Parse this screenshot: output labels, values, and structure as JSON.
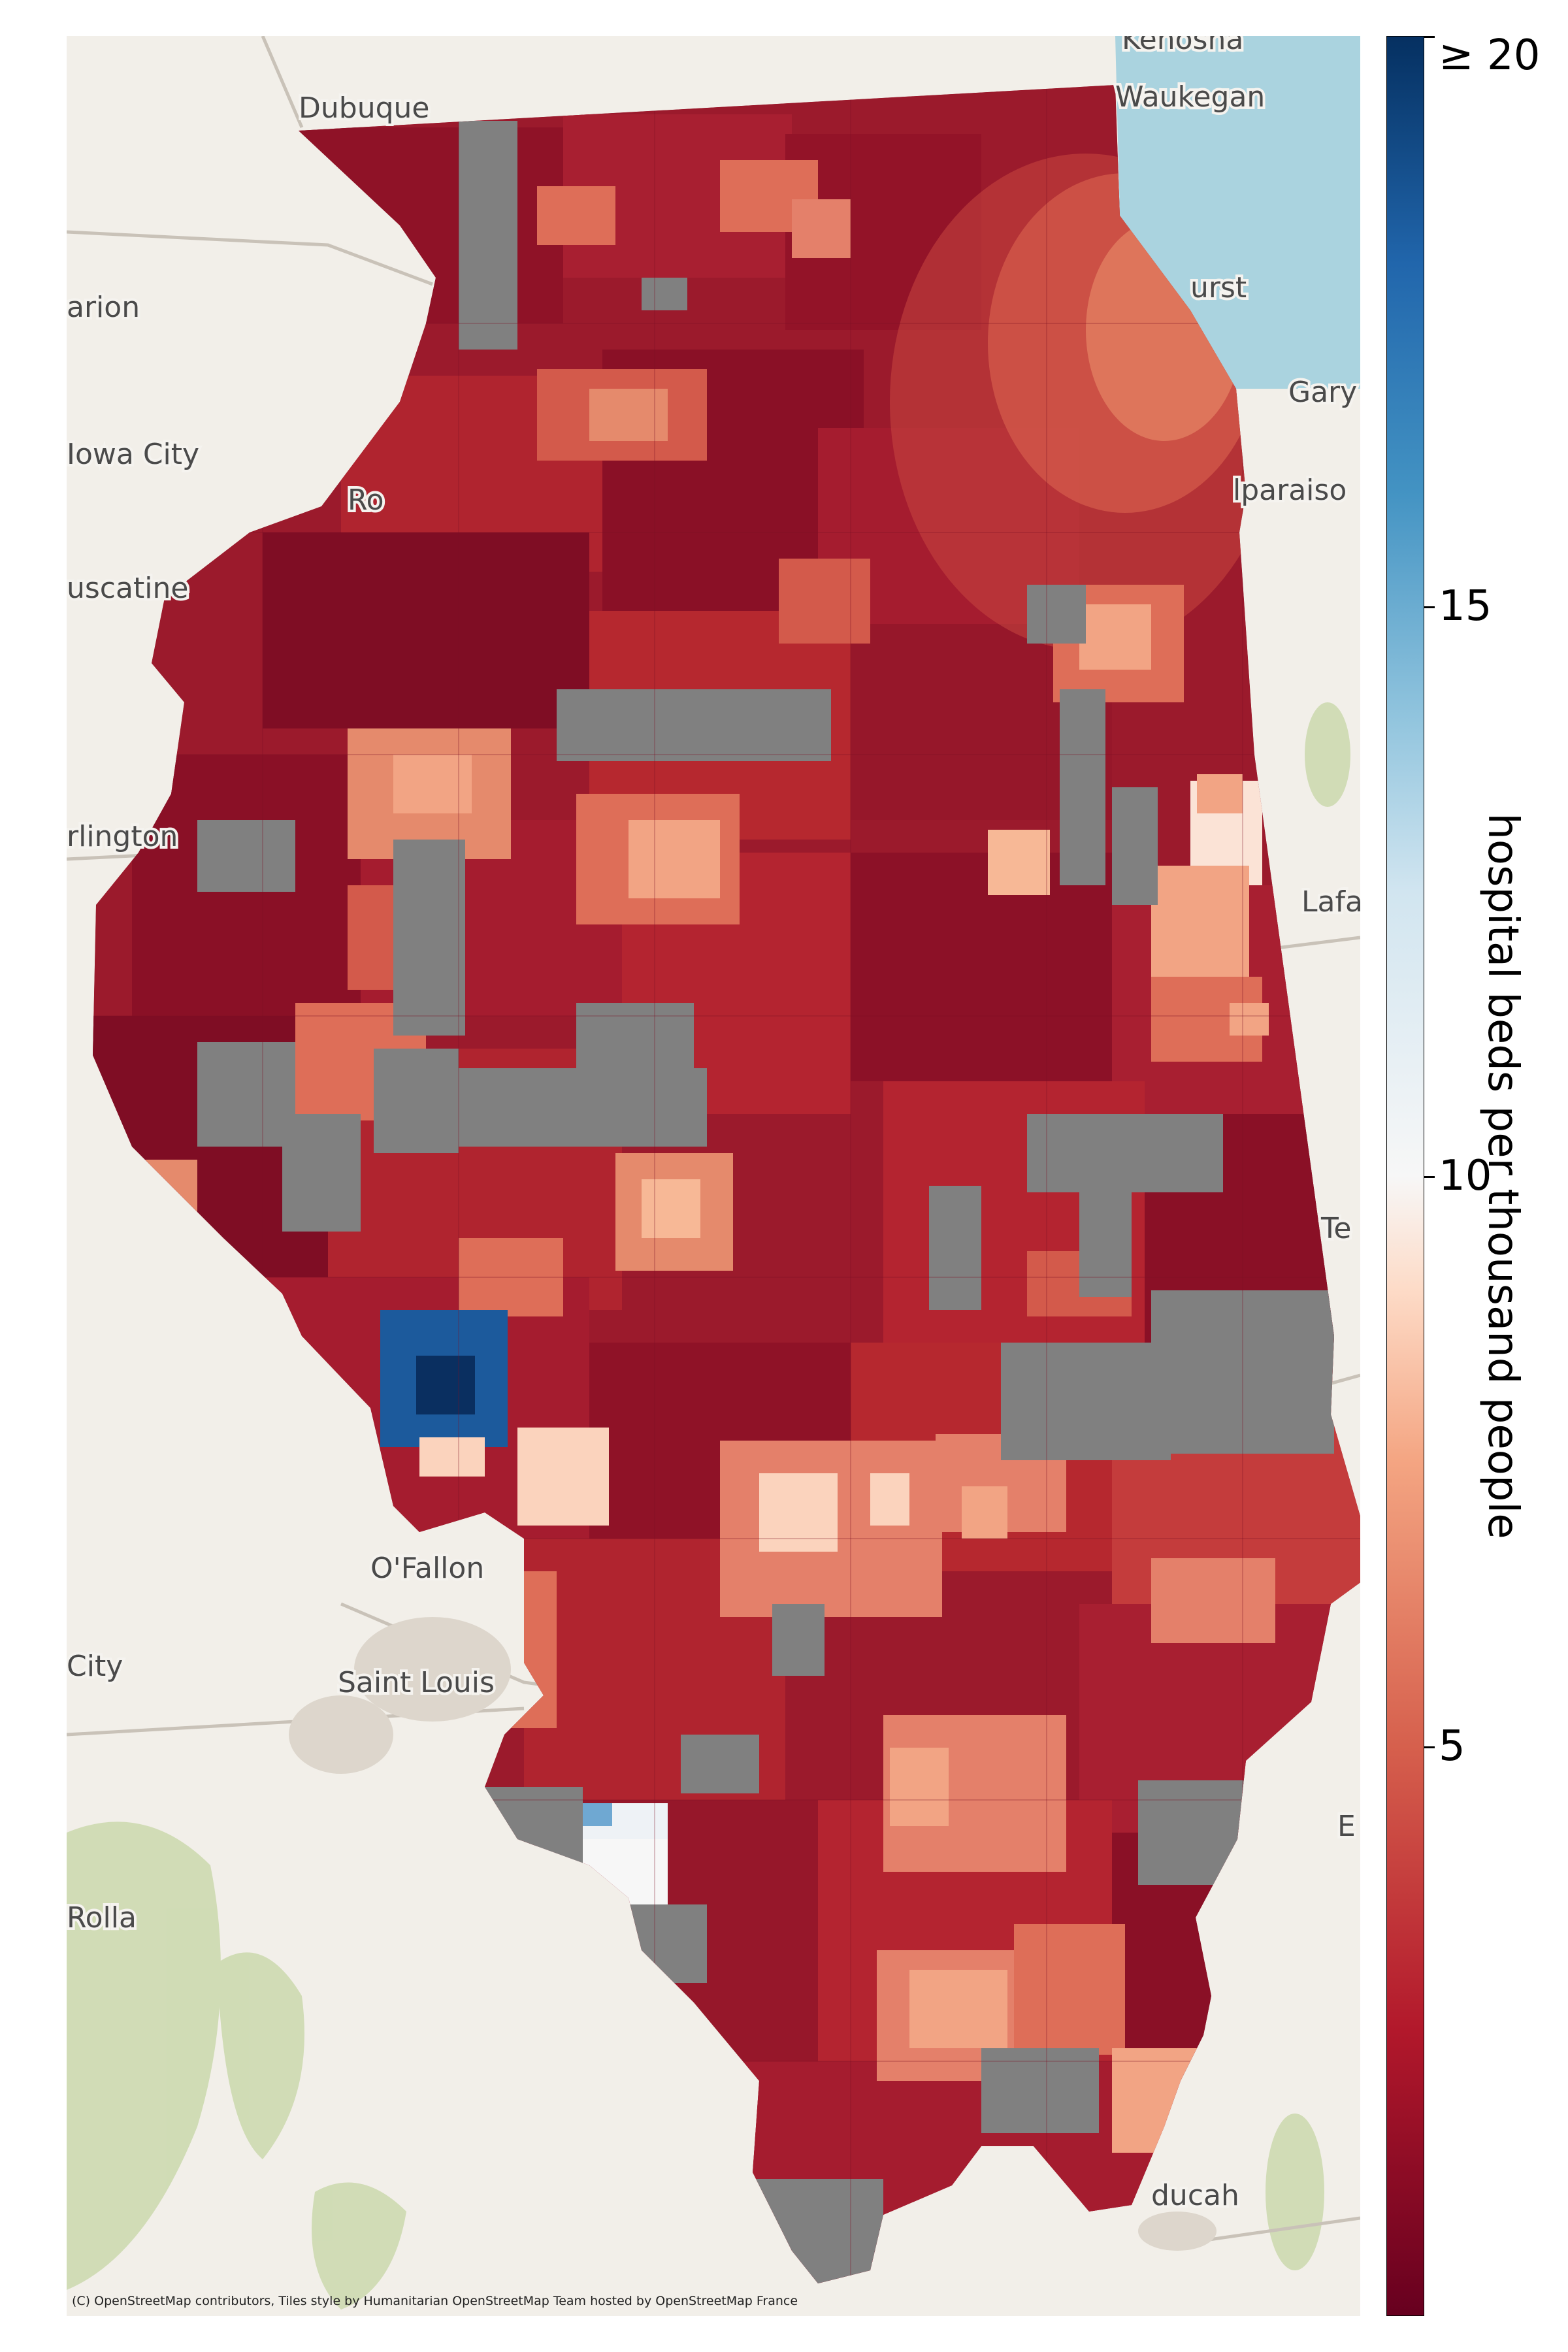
{
  "map": {
    "basemap_places": [
      {
        "name": "Dubuque"
      },
      {
        "name": "Waukegan"
      },
      {
        "name": "Kenosha"
      },
      {
        "name": "arion"
      },
      {
        "name": "urst"
      },
      {
        "name": "Gary"
      },
      {
        "name": "Iowa City"
      },
      {
        "name": "Ro"
      },
      {
        "name": "lparaiso"
      },
      {
        "name": "uscatine"
      },
      {
        "name": "rlington"
      },
      {
        "name": "Lafa"
      },
      {
        "name": "Te"
      },
      {
        "name": "O'Fallon"
      },
      {
        "name": "Saint Louis"
      },
      {
        "name": "City"
      },
      {
        "name": "Rolla"
      },
      {
        "name": "E"
      },
      {
        "name": "ducah"
      }
    ],
    "attribution": "(C) OpenStreetMap contributors, Tiles style by Humanitarian OpenStreetMap Team hosted by OpenStreetMap France",
    "no_data_color": "#808080",
    "colors": {
      "very_low": "#7a0f25",
      "low": "#a51c2f",
      "mid_low": "#c43c3c",
      "mid": "#de6e58",
      "mid_high": "#f2a484",
      "high": "#fbd3bd",
      "neutral": "#eef2f6",
      "blue_light": "#6fa8d2",
      "blue": "#1c5a9c",
      "blue_dark": "#0a2f60",
      "lake": "#aad3df",
      "land": "#f2efe9"
    }
  },
  "colorbar": {
    "label": "hospital beds per thousand people",
    "ticks": [
      {
        "value": 5,
        "label": "5"
      },
      {
        "value": 10,
        "label": "10"
      },
      {
        "value": 15,
        "label": "15"
      },
      {
        "value": 20,
        "label": "≥ 20"
      }
    ],
    "min": 0,
    "max": 20,
    "colormap": "RdBu"
  }
}
